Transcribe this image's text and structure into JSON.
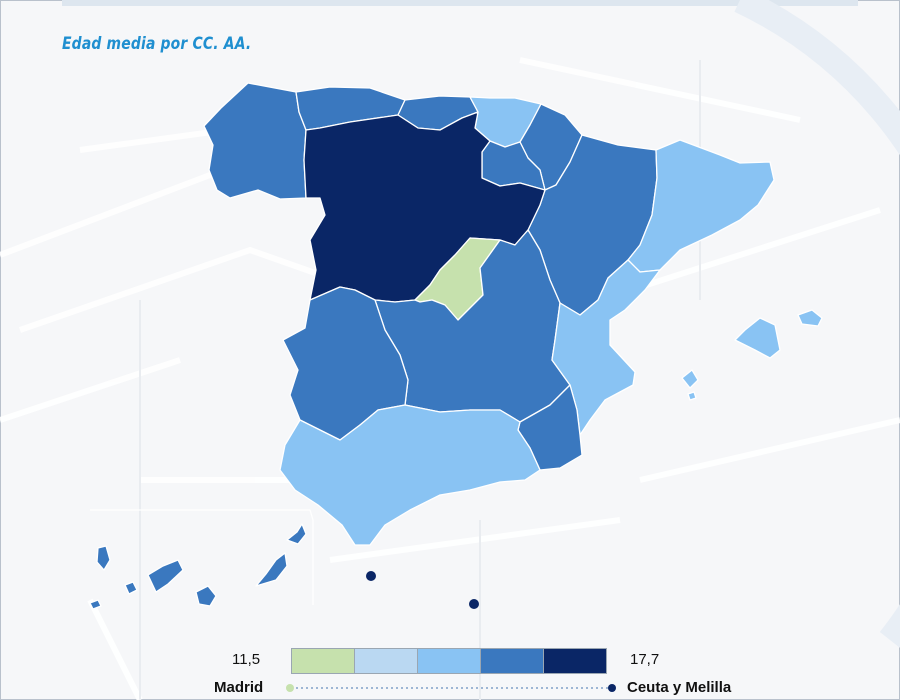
{
  "title": "Edad media por CC. AA.",
  "colors": {
    "class1": "#c6e1ad",
    "class2": "#bad8f2",
    "class3": "#89c3f3",
    "class4": "#3a78bf",
    "class5": "#0a2666",
    "background": "#f6f7f9"
  },
  "regions": [
    {
      "name": "Galicia",
      "class": 4
    },
    {
      "name": "Asturias",
      "class": 4
    },
    {
      "name": "Cantabria",
      "class": 4
    },
    {
      "name": "País Vasco",
      "class": 3
    },
    {
      "name": "Navarra",
      "class": 4
    },
    {
      "name": "La Rioja",
      "class": 4
    },
    {
      "name": "Aragón",
      "class": 4
    },
    {
      "name": "Cataluña",
      "class": 3
    },
    {
      "name": "Castilla y León",
      "class": 5
    },
    {
      "name": "Madrid",
      "class": 1
    },
    {
      "name": "Castilla-La Mancha",
      "class": 4
    },
    {
      "name": "Extremadura",
      "class": 4
    },
    {
      "name": "Comunidad Valenciana",
      "class": 3
    },
    {
      "name": "Murcia",
      "class": 4
    },
    {
      "name": "Andalucía",
      "class": 3
    },
    {
      "name": "Islas Baleares",
      "class": 3
    },
    {
      "name": "Canarias",
      "class": 4
    },
    {
      "name": "Ceuta",
      "class": 5
    },
    {
      "name": "Melilla",
      "class": 5
    }
  ],
  "legend": {
    "min_value": "11,5",
    "max_value": "17,7",
    "min_label": "Madrid",
    "max_label": "Ceuta y Melilla"
  }
}
